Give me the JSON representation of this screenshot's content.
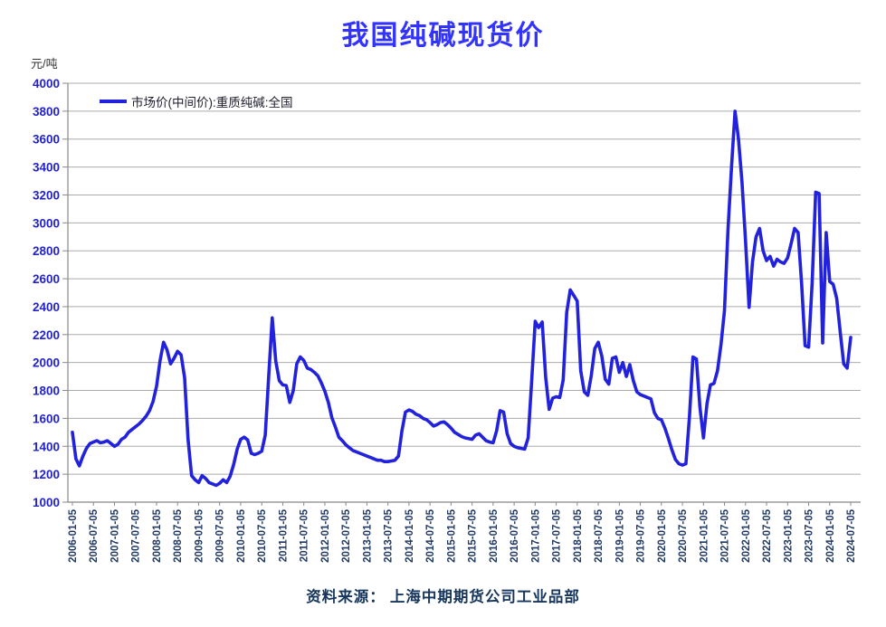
{
  "title": "我国纯碱现货价",
  "y_axis_unit": "元/吨",
  "legend": {
    "label": "市场价(中间价):重质纯碱:全国"
  },
  "source": "资料来源： 上海中期期货公司工业品部",
  "colors": {
    "line": "#2222DD",
    "title": "#3333FF",
    "y_tick": "#2222CC",
    "x_tick": "#1F3864",
    "source": "#17365D",
    "grid": "#ABABAB",
    "axis": "#888888"
  },
  "chart_data": {
    "type": "line",
    "title": "我国纯碱现货价",
    "ylabel": "元/吨",
    "series_name": "市场价(中间价):重质纯碱:全国",
    "legend_position": "top-left",
    "grid": true,
    "ylim": [
      1000,
      4000
    ],
    "y_ticks": [
      4000,
      3800,
      3600,
      3400,
      3200,
      3000,
      2800,
      2600,
      2400,
      2200,
      2000,
      1800,
      1600,
      1400,
      1200,
      1000
    ],
    "x_tick_labels": [
      "2006-01-05",
      "2006-07-05",
      "2007-01-05",
      "2007-07-05",
      "2008-01-05",
      "2008-07-05",
      "2009-01-05",
      "2009-07-05",
      "2010-01-05",
      "2010-07-05",
      "2011-01-05",
      "2011-07-05",
      "2012-01-05",
      "2012-07-05",
      "2013-01-05",
      "2013-07-05",
      "2014-01-05",
      "2014-07-05",
      "2015-01-05",
      "2015-07-05",
      "2016-01-05",
      "2016-07-05",
      "2017-01-05",
      "2017-07-05",
      "2018-01-05",
      "2018-07-05",
      "2019-01-05",
      "2019-07-05",
      "2020-01-05",
      "2020-07-05",
      "2021-01-05",
      "2021-07-05",
      "2022-01-05",
      "2022-07-05",
      "2023-01-05",
      "2023-07-05",
      "2024-01-05",
      "2024-07-05"
    ],
    "x_start": "2006-01",
    "x_step_months": 1,
    "values": [
      1500,
      1310,
      1260,
      1330,
      1385,
      1420,
      1430,
      1440,
      1425,
      1430,
      1440,
      1420,
      1400,
      1415,
      1450,
      1465,
      1500,
      1520,
      1540,
      1560,
      1585,
      1615,
      1655,
      1720,
      1830,
      2010,
      2145,
      2090,
      1990,
      2030,
      2080,
      2055,
      1890,
      1450,
      1190,
      1160,
      1140,
      1190,
      1170,
      1140,
      1130,
      1120,
      1135,
      1160,
      1140,
      1185,
      1270,
      1380,
      1450,
      1465,
      1445,
      1350,
      1340,
      1350,
      1365,
      1480,
      1900,
      2320,
      2010,
      1870,
      1840,
      1835,
      1715,
      1800,
      1990,
      2040,
      2015,
      1960,
      1950,
      1930,
      1905,
      1855,
      1795,
      1715,
      1605,
      1540,
      1465,
      1440,
      1410,
      1390,
      1370,
      1360,
      1350,
      1340,
      1330,
      1320,
      1310,
      1300,
      1300,
      1290,
      1290,
      1295,
      1300,
      1330,
      1510,
      1645,
      1660,
      1650,
      1630,
      1620,
      1600,
      1590,
      1570,
      1545,
      1555,
      1570,
      1575,
      1555,
      1530,
      1500,
      1485,
      1470,
      1460,
      1455,
      1450,
      1480,
      1490,
      1465,
      1440,
      1430,
      1425,
      1510,
      1655,
      1645,
      1490,
      1420,
      1400,
      1390,
      1385,
      1380,
      1460,
      1870,
      2295,
      2250,
      2290,
      1890,
      1665,
      1745,
      1755,
      1750,
      1875,
      2360,
      2520,
      2480,
      2440,
      1940,
      1790,
      1765,
      1905,
      2100,
      2145,
      2045,
      1880,
      1845,
      2030,
      2040,
      1930,
      2000,
      1900,
      1985,
      1870,
      1790,
      1770,
      1760,
      1750,
      1740,
      1640,
      1600,
      1590,
      1530,
      1455,
      1375,
      1305,
      1275,
      1265,
      1275,
      1610,
      2040,
      2025,
      1680,
      1460,
      1705,
      1840,
      1850,
      1940,
      2130,
      2370,
      2950,
      3400,
      3800,
      3600,
      3290,
      2870,
      2395,
      2720,
      2900,
      2960,
      2800,
      2730,
      2760,
      2690,
      2740,
      2720,
      2710,
      2750,
      2850,
      2960,
      2930,
      2560,
      2120,
      2110,
      2570,
      3220,
      3210,
      2140,
      2930,
      2580,
      2560,
      2460,
      2220,
      1990,
      1960,
      2180
    ]
  }
}
